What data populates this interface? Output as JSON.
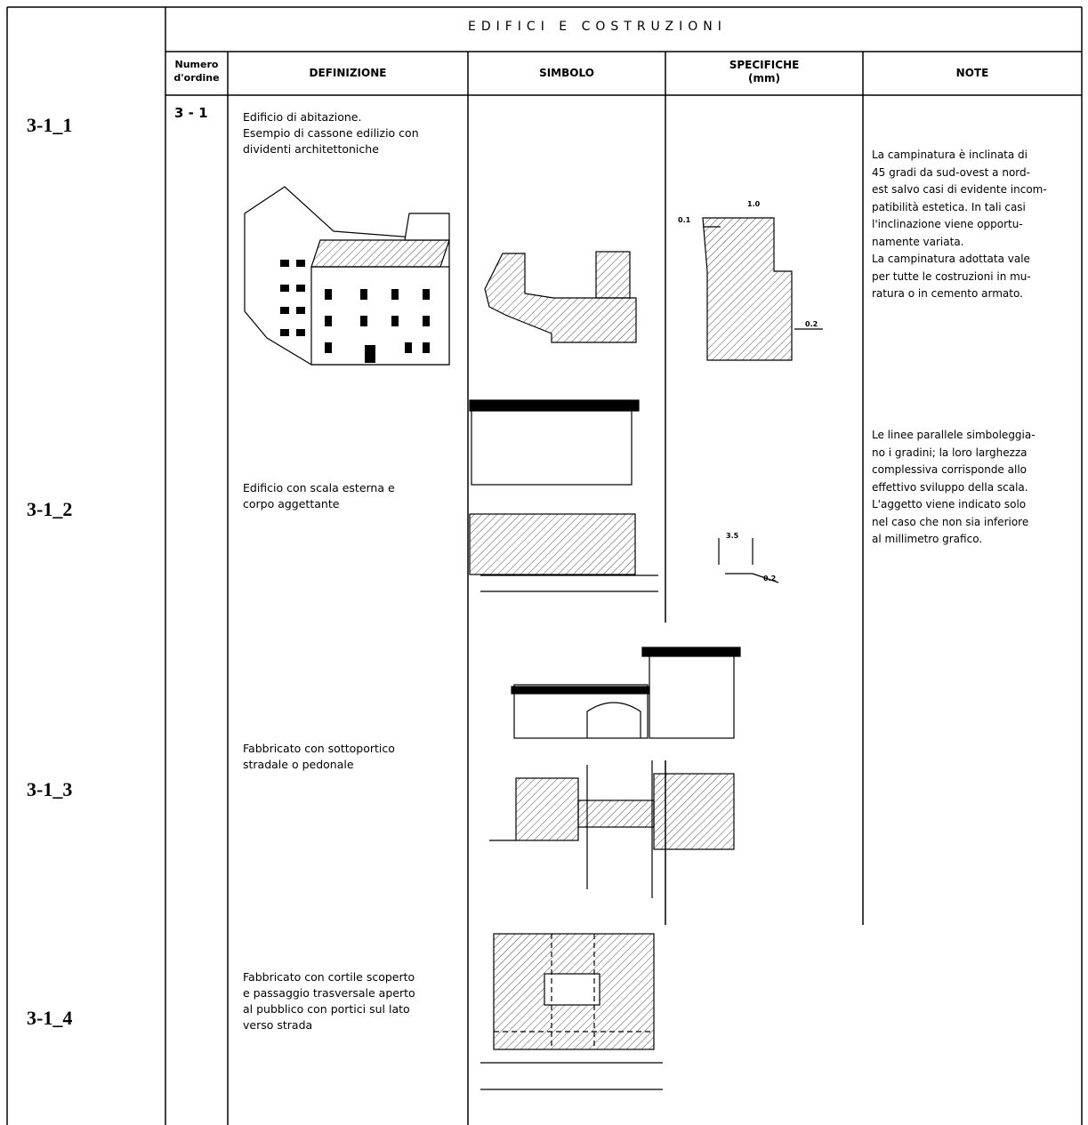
{
  "header": {
    "title": "EDIFICI E COSTRUZIONI"
  },
  "columns": [
    "Numero",
    "d'ordine",
    "DEFINIZIONE",
    "SIMBOLO",
    "SPECIFICHE",
    "(mm)",
    "NOTE"
  ],
  "rows": [
    {
      "id": "3-1_1",
      "number": "3 - 1",
      "definition": [
        "Edificio di abitazione.",
        "Esempio di cassone edilizio con",
        "dividenti architettoniche"
      ],
      "specs": [
        "1.0",
        "0.1",
        "0.2"
      ],
      "note": [
        "La campinatura è inclinata di",
        "45 gradi da sud-ovest a nord-",
        "est salvo casi di evidente incom-",
        "patibilità estetica. In tali casi",
        "l'inclinazione viene opportu-",
        "namente variata.",
        "La campinatura adottata vale",
        "per tutte le costruzioni in mu-",
        "ratura o in cemento armato."
      ]
    },
    {
      "id": "3-1_2",
      "definition": [
        "Edificio con scala esterna e",
        "corpo aggettante"
      ],
      "specs": [
        "3.5",
        "0.2"
      ],
      "note": [
        "Le linee parallele simboleggia-",
        "no i gradini; la loro larghezza",
        "complessiva corrisponde allo",
        "effettivo sviluppo della scala.",
        "L'aggetto viene indicato solo",
        "nel caso che non sia inferiore",
        "al millimetro grafico."
      ]
    },
    {
      "id": "3-1_3",
      "definition": [
        "Fabbricato con sottoportico",
        "stradale o pedonale"
      ]
    },
    {
      "id": "3-1_4",
      "definition": [
        "Fabbricato con cortile scoperto",
        "e passaggio trasversale aperto",
        "al pubblico con portici sul lato",
        "verso strada"
      ]
    }
  ]
}
